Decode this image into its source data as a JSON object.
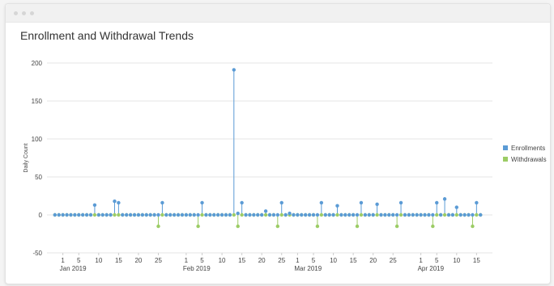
{
  "window": {
    "controls": [
      "close-dot",
      "minimize-dot",
      "maximize-dot"
    ]
  },
  "colors": {
    "enrollments": "#5b9bd5",
    "withdrawals": "#9ccc65",
    "grid": "#e6e6e6",
    "axis_text": "#444444"
  },
  "chart_data": {
    "type": "stem",
    "title": "Enrollment and Withdrawal Trends",
    "xlabel": "",
    "ylabel": "Daily Count",
    "ylim": [
      -50,
      200
    ],
    "yticks": [
      -50,
      0,
      50,
      100,
      150,
      200
    ],
    "xlim": [
      "2018-12-28",
      "2019-04-19"
    ],
    "xticks": [
      {
        "date": "2019-01-01",
        "label": "1",
        "sublabel": "Jan 2019"
      },
      {
        "date": "2019-01-05",
        "label": "5"
      },
      {
        "date": "2019-01-10",
        "label": "10"
      },
      {
        "date": "2019-01-15",
        "label": "15"
      },
      {
        "date": "2019-01-20",
        "label": "20"
      },
      {
        "date": "2019-01-25",
        "label": "25"
      },
      {
        "date": "2019-02-01",
        "label": "1",
        "sublabel": "Feb 2019"
      },
      {
        "date": "2019-02-05",
        "label": "5"
      },
      {
        "date": "2019-02-10",
        "label": "10"
      },
      {
        "date": "2019-02-15",
        "label": "15"
      },
      {
        "date": "2019-02-20",
        "label": "20"
      },
      {
        "date": "2019-02-25",
        "label": "25"
      },
      {
        "date": "2019-03-01",
        "label": "1",
        "sublabel": "Mar 2019"
      },
      {
        "date": "2019-03-05",
        "label": "5"
      },
      {
        "date": "2019-03-10",
        "label": "10"
      },
      {
        "date": "2019-03-15",
        "label": "15"
      },
      {
        "date": "2019-03-20",
        "label": "20"
      },
      {
        "date": "2019-03-25",
        "label": "25"
      },
      {
        "date": "2019-04-01",
        "label": "1",
        "sublabel": "Apr 2019"
      },
      {
        "date": "2019-04-05",
        "label": "5"
      },
      {
        "date": "2019-04-10",
        "label": "10"
      },
      {
        "date": "2019-04-15",
        "label": "15"
      }
    ],
    "grid": true,
    "legend_position": "right",
    "series": [
      {
        "name": "Enrollments",
        "color": "#5b9bd5",
        "default_value": 0,
        "points": [
          {
            "date": "2019-01-09",
            "value": 13
          },
          {
            "date": "2019-01-14",
            "value": 18
          },
          {
            "date": "2019-01-15",
            "value": 16
          },
          {
            "date": "2019-01-25",
            "value": 0
          },
          {
            "date": "2019-01-26",
            "value": 16
          },
          {
            "date": "2019-02-04",
            "value": 0
          },
          {
            "date": "2019-02-05",
            "value": 16
          },
          {
            "date": "2019-02-13",
            "value": 191
          },
          {
            "date": "2019-02-14",
            "value": 2
          },
          {
            "date": "2019-02-15",
            "value": 16
          },
          {
            "date": "2019-02-20",
            "value": 0
          },
          {
            "date": "2019-02-21",
            "value": 5
          },
          {
            "date": "2019-02-24",
            "value": 0
          },
          {
            "date": "2019-02-25",
            "value": 16
          },
          {
            "date": "2019-02-27",
            "value": 2
          },
          {
            "date": "2019-03-06",
            "value": 0
          },
          {
            "date": "2019-03-07",
            "value": 16
          },
          {
            "date": "2019-03-11",
            "value": 12
          },
          {
            "date": "2019-03-16",
            "value": 0
          },
          {
            "date": "2019-03-17",
            "value": 16
          },
          {
            "date": "2019-03-21",
            "value": 14
          },
          {
            "date": "2019-03-26",
            "value": 0
          },
          {
            "date": "2019-03-27",
            "value": 16
          },
          {
            "date": "2019-04-04",
            "value": 0
          },
          {
            "date": "2019-04-05",
            "value": 16
          },
          {
            "date": "2019-04-07",
            "value": 21
          },
          {
            "date": "2019-04-10",
            "value": 10
          },
          {
            "date": "2019-04-14",
            "value": 0
          },
          {
            "date": "2019-04-15",
            "value": 16
          }
        ]
      },
      {
        "name": "Withdrawals",
        "color": "#9ccc65",
        "default_value": 0,
        "points": [
          {
            "date": "2019-01-25",
            "value": -15
          },
          {
            "date": "2019-02-04",
            "value": -15
          },
          {
            "date": "2019-02-14",
            "value": -15
          },
          {
            "date": "2019-02-24",
            "value": -15
          },
          {
            "date": "2019-03-06",
            "value": -15
          },
          {
            "date": "2019-03-16",
            "value": -15
          },
          {
            "date": "2019-03-26",
            "value": -15
          },
          {
            "date": "2019-04-04",
            "value": -15
          },
          {
            "date": "2019-04-14",
            "value": -15
          }
        ]
      }
    ]
  }
}
